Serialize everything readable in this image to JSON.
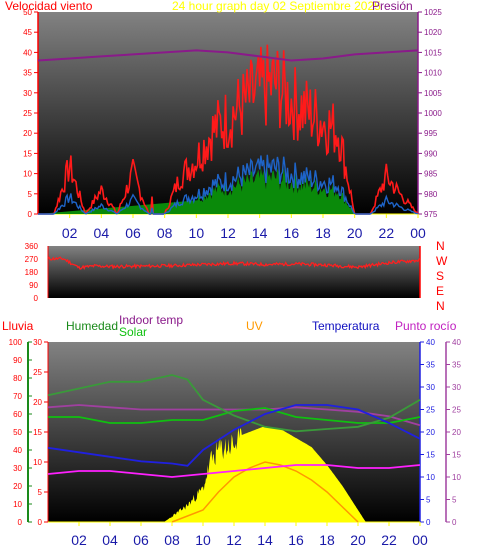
{
  "header": {
    "wind_label": "Velocidad viento",
    "title": "24 hour graph day   02 Septiembre 2025",
    "pressure_label": "Presión"
  },
  "labels": {
    "rain": "Lluvia",
    "humidity": "Humedad",
    "indoor_temp": "Indoor temp",
    "solar": "Solar",
    "uv": "UV",
    "temperature": "Temperatura",
    "dew_point": "Punto rocío"
  },
  "compass": [
    "N",
    "W",
    "S",
    "E",
    "N"
  ],
  "colors": {
    "wind_gust": "#ff1a1a",
    "wind_avg": "#1e64c8",
    "wind_green": "#0a8a0a",
    "pressure": "#8a1a8a",
    "direction": "#ff2020",
    "humidity": "#3a9a3a",
    "indoor_temp": "#10c010",
    "temperature": "#2020e0",
    "dew_point": "#a040a0",
    "solar": "#ffff00",
    "uv": "#ff9900",
    "magenta_line": "#ff20ff",
    "rain_axis": "#1a8a1a"
  },
  "chart_data": [
    {
      "type": "line",
      "title": "24 hour graph day   02 Septiembre 2025",
      "x_ticks": [
        "02",
        "04",
        "06",
        "08",
        "10",
        "12",
        "14",
        "16",
        "18",
        "20",
        "22",
        "00"
      ],
      "y_left": {
        "label": "Velocidad viento",
        "ticks": [
          "0",
          "5",
          "10",
          "15",
          "20",
          "25",
          "30",
          "35",
          "40",
          "45",
          "50"
        ],
        "range": [
          0,
          50
        ]
      },
      "y_right": {
        "label": "Presión",
        "ticks": [
          "975",
          "980",
          "985",
          "990",
          "995",
          "1000",
          "1005",
          "1010",
          "1015",
          "1020",
          "1025"
        ],
        "range": [
          975,
          1025
        ]
      },
      "series": [
        {
          "name": "Velocidad viento",
          "hours": [
            0,
            1,
            2,
            3,
            4,
            5,
            6,
            7,
            8,
            9,
            10,
            11,
            12,
            13,
            14,
            15,
            16,
            17,
            18,
            19,
            20,
            21,
            22,
            23,
            24
          ],
          "values": [
            0,
            0,
            14,
            0,
            7,
            0,
            12,
            0,
            0,
            11,
            16,
            24,
            28,
            32,
            36,
            38,
            33,
            30,
            27,
            24,
            0,
            0,
            11,
            5,
            0
          ]
        },
        {
          "name": "Presión",
          "hours": [
            0,
            2,
            4,
            6,
            8,
            10,
            12,
            14,
            16,
            18,
            20,
            22,
            24
          ],
          "values": [
            1013,
            1013.5,
            1014,
            1014.5,
            1015,
            1015.5,
            1015,
            1014,
            1013,
            1013.5,
            1014.5,
            1015,
            1015.5
          ]
        }
      ]
    },
    {
      "type": "line",
      "x_ticks": [
        "02",
        "04",
        "06",
        "08",
        "10",
        "12",
        "14",
        "16",
        "18",
        "20",
        "22",
        "00"
      ],
      "y_left": {
        "ticks": [
          "0",
          "90",
          "180",
          "270",
          "360"
        ],
        "range": [
          0,
          360
        ]
      },
      "y_right_labels": [
        "N",
        "W",
        "S",
        "E",
        "N"
      ],
      "series": [
        {
          "name": "direction",
          "hours": [
            0,
            1,
            2,
            3,
            4,
            6,
            8,
            10,
            12,
            14,
            16,
            18,
            20,
            22,
            24
          ],
          "values": [
            272,
            272,
            210,
            222,
            218,
            220,
            224,
            232,
            240,
            232,
            236,
            228,
            214,
            244,
            262
          ]
        }
      ]
    },
    {
      "type": "line",
      "x_ticks": [
        "02",
        "04",
        "06",
        "08",
        "10",
        "12",
        "14",
        "16",
        "18",
        "20",
        "22",
        "00"
      ],
      "y_axes": {
        "rain": {
          "ticks": [
            "0",
            "10",
            "20",
            "30",
            "40",
            "50",
            "60",
            "70",
            "80",
            "90",
            "100"
          ],
          "range": [
            0,
            100
          ]
        },
        "humidity": {
          "ticks": [
            "0",
            "5",
            "10",
            "15",
            "20",
            "25",
            "30"
          ],
          "range": [
            0,
            30
          ]
        },
        "temperature": {
          "ticks": [
            "0",
            "5",
            "10",
            "15",
            "20",
            "25",
            "30",
            "35",
            "40"
          ],
          "range": [
            0,
            40
          ]
        },
        "dew_point": {
          "ticks": [
            "0",
            "5",
            "10",
            "15",
            "20",
            "25",
            "30",
            "35",
            "40"
          ],
          "range": [
            0,
            40
          ]
        }
      },
      "series": [
        {
          "name": "Humedad",
          "hours": [
            0,
            2,
            4,
            6,
            8,
            9,
            10,
            12,
            14,
            16,
            18,
            20,
            22,
            24
          ],
          "values": [
            25.5,
            27,
            28.5,
            28.5,
            30,
            29,
            24.5,
            21,
            18.5,
            17.5,
            18,
            18.5,
            20.5,
            24.5
          ]
        },
        {
          "name": "Indoor temp",
          "hours": [
            0,
            2,
            4,
            6,
            8,
            10,
            12,
            14,
            16,
            18,
            20,
            22,
            24
          ],
          "values": [
            17.5,
            17.5,
            16.5,
            16.5,
            17,
            17,
            18.5,
            19,
            17.5,
            17,
            16.5,
            16.5,
            17.5
          ]
        },
        {
          "name": "Temperatura",
          "hours": [
            0,
            2,
            4,
            6,
            8,
            9,
            10,
            12,
            14,
            16,
            18,
            20,
            22,
            24
          ],
          "values": [
            16.5,
            15.5,
            14.5,
            13.5,
            13,
            12.5,
            16,
            20.5,
            24,
            26,
            26,
            25,
            22,
            18.5
          ]
        },
        {
          "name": "Punto rocío",
          "hours": [
            0,
            2,
            4,
            6,
            8,
            10,
            12,
            14,
            16,
            18,
            20,
            22,
            24
          ],
          "values": [
            25.5,
            26,
            25.5,
            25,
            25,
            25,
            25,
            25,
            25.5,
            25,
            24.5,
            23.5,
            21.5
          ]
        },
        {
          "name": "magenta",
          "hours": [
            0,
            2,
            4,
            6,
            8,
            10,
            12,
            14,
            16,
            18,
            20,
            22,
            24
          ],
          "values": [
            8,
            8.5,
            8.5,
            8,
            7.5,
            8,
            8.5,
            9,
            9.5,
            9.5,
            9,
            9,
            9.5
          ]
        },
        {
          "name": "Solar",
          "hours": [
            7.5,
            8,
            9,
            10,
            10.5,
            11,
            12,
            13,
            14,
            15,
            16,
            17,
            18,
            19,
            20,
            20.5
          ],
          "values": [
            0,
            1,
            3,
            6,
            11,
            13,
            14,
            15,
            16,
            15.5,
            14,
            12.5,
            9.5,
            6,
            2,
            0
          ]
        },
        {
          "name": "UV",
          "hours": [
            8,
            10,
            11,
            12,
            13,
            14,
            15,
            16,
            17,
            18,
            19,
            20
          ],
          "values": [
            0,
            2,
            5,
            7.5,
            9,
            10,
            9.5,
            8.5,
            7,
            5,
            2.5,
            0
          ]
        }
      ]
    }
  ]
}
